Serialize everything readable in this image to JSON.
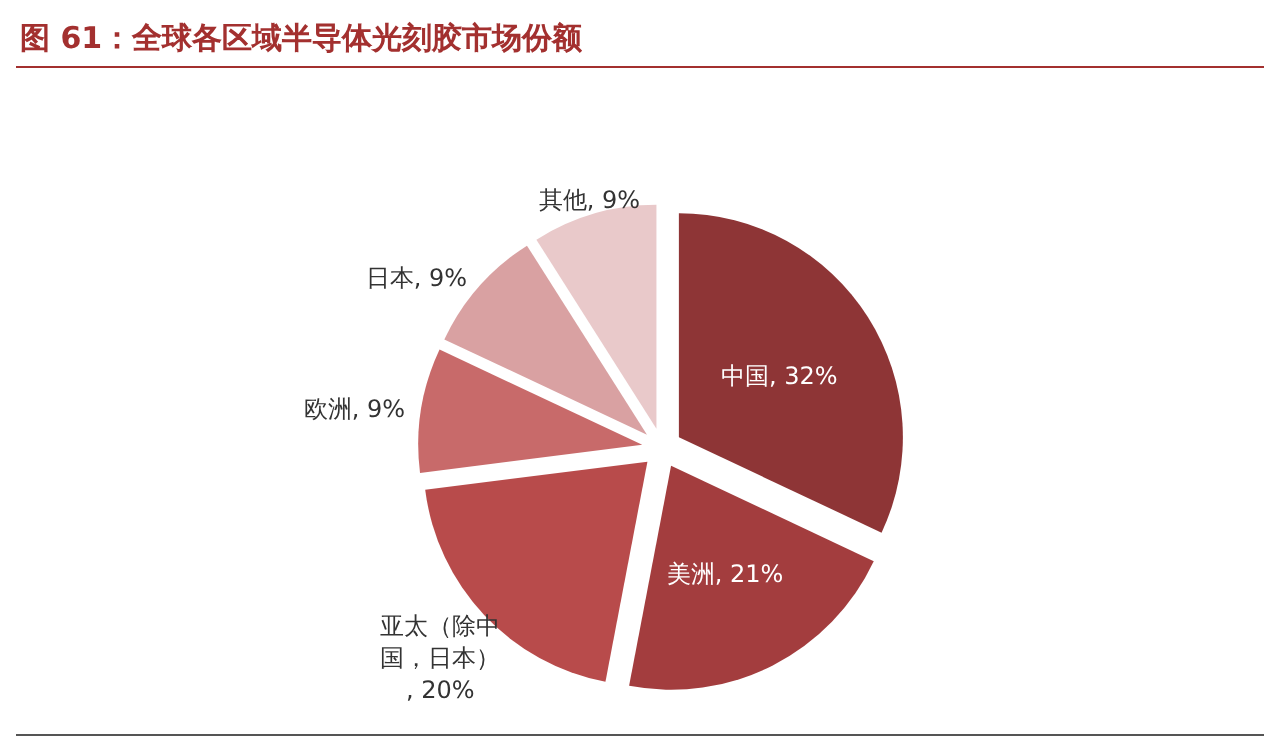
{
  "chart_data": {
    "type": "pie",
    "title": "图 61：全球各区域半导体光刻胶市场份额",
    "categories": [
      "中国",
      "美洲",
      "亚太（除中国，日本）",
      "欧洲",
      "日本",
      "其他"
    ],
    "values": [
      32,
      21,
      20,
      9,
      9,
      9
    ],
    "colors": [
      "#8e3536",
      "#a33d3e",
      "#b84b4b",
      "#c86a6a",
      "#d9a1a2",
      "#e9c9ca"
    ],
    "value_labels": [
      ", 32%",
      ", 21%",
      ", 20%",
      ", 9%",
      ", 9%",
      ", 9%"
    ]
  }
}
